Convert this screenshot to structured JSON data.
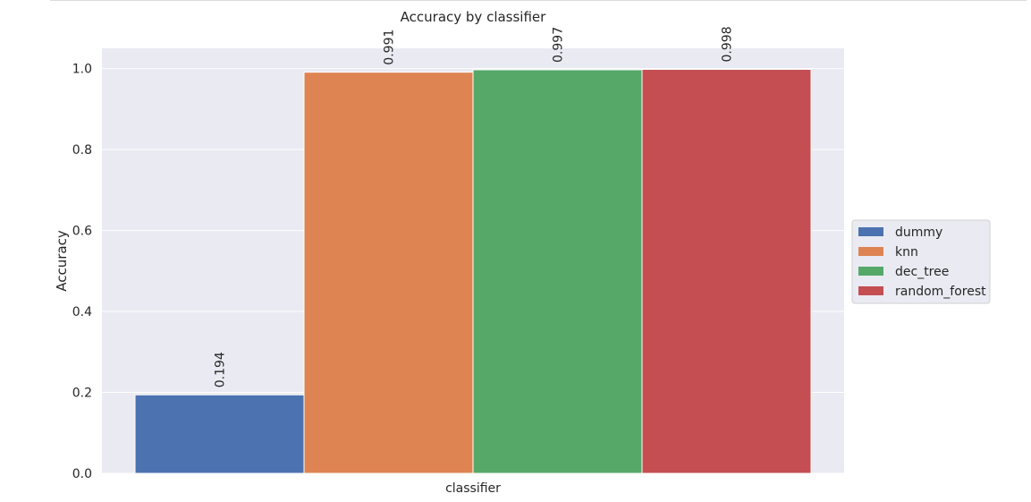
{
  "chart_data": {
    "type": "bar",
    "title": "Accuracy by classifier",
    "xlabel": "classifier",
    "ylabel": "Accuracy",
    "categories": [
      ""
    ],
    "series": [
      {
        "name": "dummy",
        "values": [
          0.194
        ],
        "color": "#4c72b0",
        "label": "0.194"
      },
      {
        "name": "knn",
        "values": [
          0.991
        ],
        "color": "#dd8452",
        "label": "0.991"
      },
      {
        "name": "dec_tree",
        "values": [
          0.997
        ],
        "color": "#55a868",
        "label": "0.997"
      },
      {
        "name": "random_forest",
        "values": [
          0.998
        ],
        "color": "#c44e52",
        "label": "0.998"
      }
    ],
    "ylim": [
      0,
      1.05
    ],
    "yticks": [
      "0.0",
      "0.2",
      "0.4",
      "0.6",
      "0.8",
      "1.0"
    ],
    "grid": true,
    "legend": "center-right",
    "background": "#eaeaf2"
  }
}
